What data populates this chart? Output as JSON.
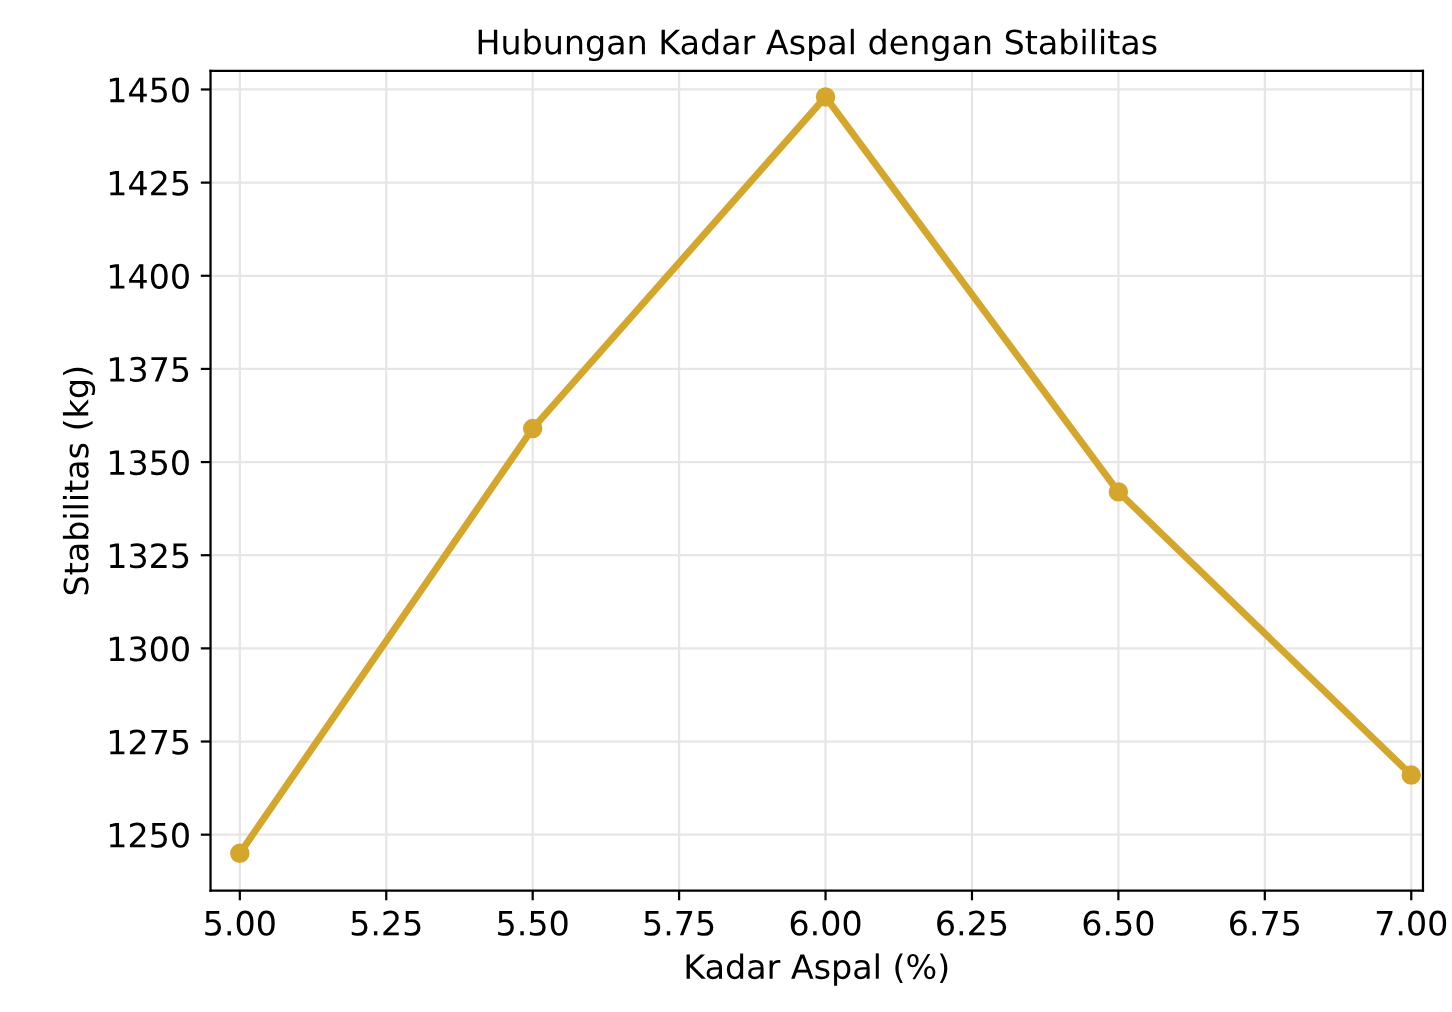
{
  "chart_data": {
    "type": "line",
    "title": "Hubungan Kadar Aspal dengan Stabilitas",
    "xlabel": "Kadar Aspal (%)",
    "ylabel": "Stabilitas (kg)",
    "x": [
      5.0,
      5.5,
      6.0,
      6.5,
      7.0
    ],
    "series": [
      {
        "color": "#d4a72c",
        "values": [
          1245,
          1359,
          1448,
          1342,
          1266
        ]
      }
    ],
    "xlim": [
      4.95,
      7.02
    ],
    "ylim": [
      1235,
      1455
    ],
    "xticks": [
      {
        "value": 5.0,
        "label": "5.00"
      },
      {
        "value": 5.25,
        "label": "5.25"
      },
      {
        "value": 5.5,
        "label": "5.50"
      },
      {
        "value": 5.75,
        "label": "5.75"
      },
      {
        "value": 6.0,
        "label": "6.00"
      },
      {
        "value": 6.25,
        "label": "6.25"
      },
      {
        "value": 6.5,
        "label": "6.50"
      },
      {
        "value": 6.75,
        "label": "6.75"
      },
      {
        "value": 7.0,
        "label": "7.00"
      }
    ],
    "yticks": [
      1250,
      1275,
      1300,
      1325,
      1350,
      1375,
      1400,
      1425,
      1450
    ],
    "grid": true,
    "marker": "circle",
    "line_style": "solid"
  }
}
